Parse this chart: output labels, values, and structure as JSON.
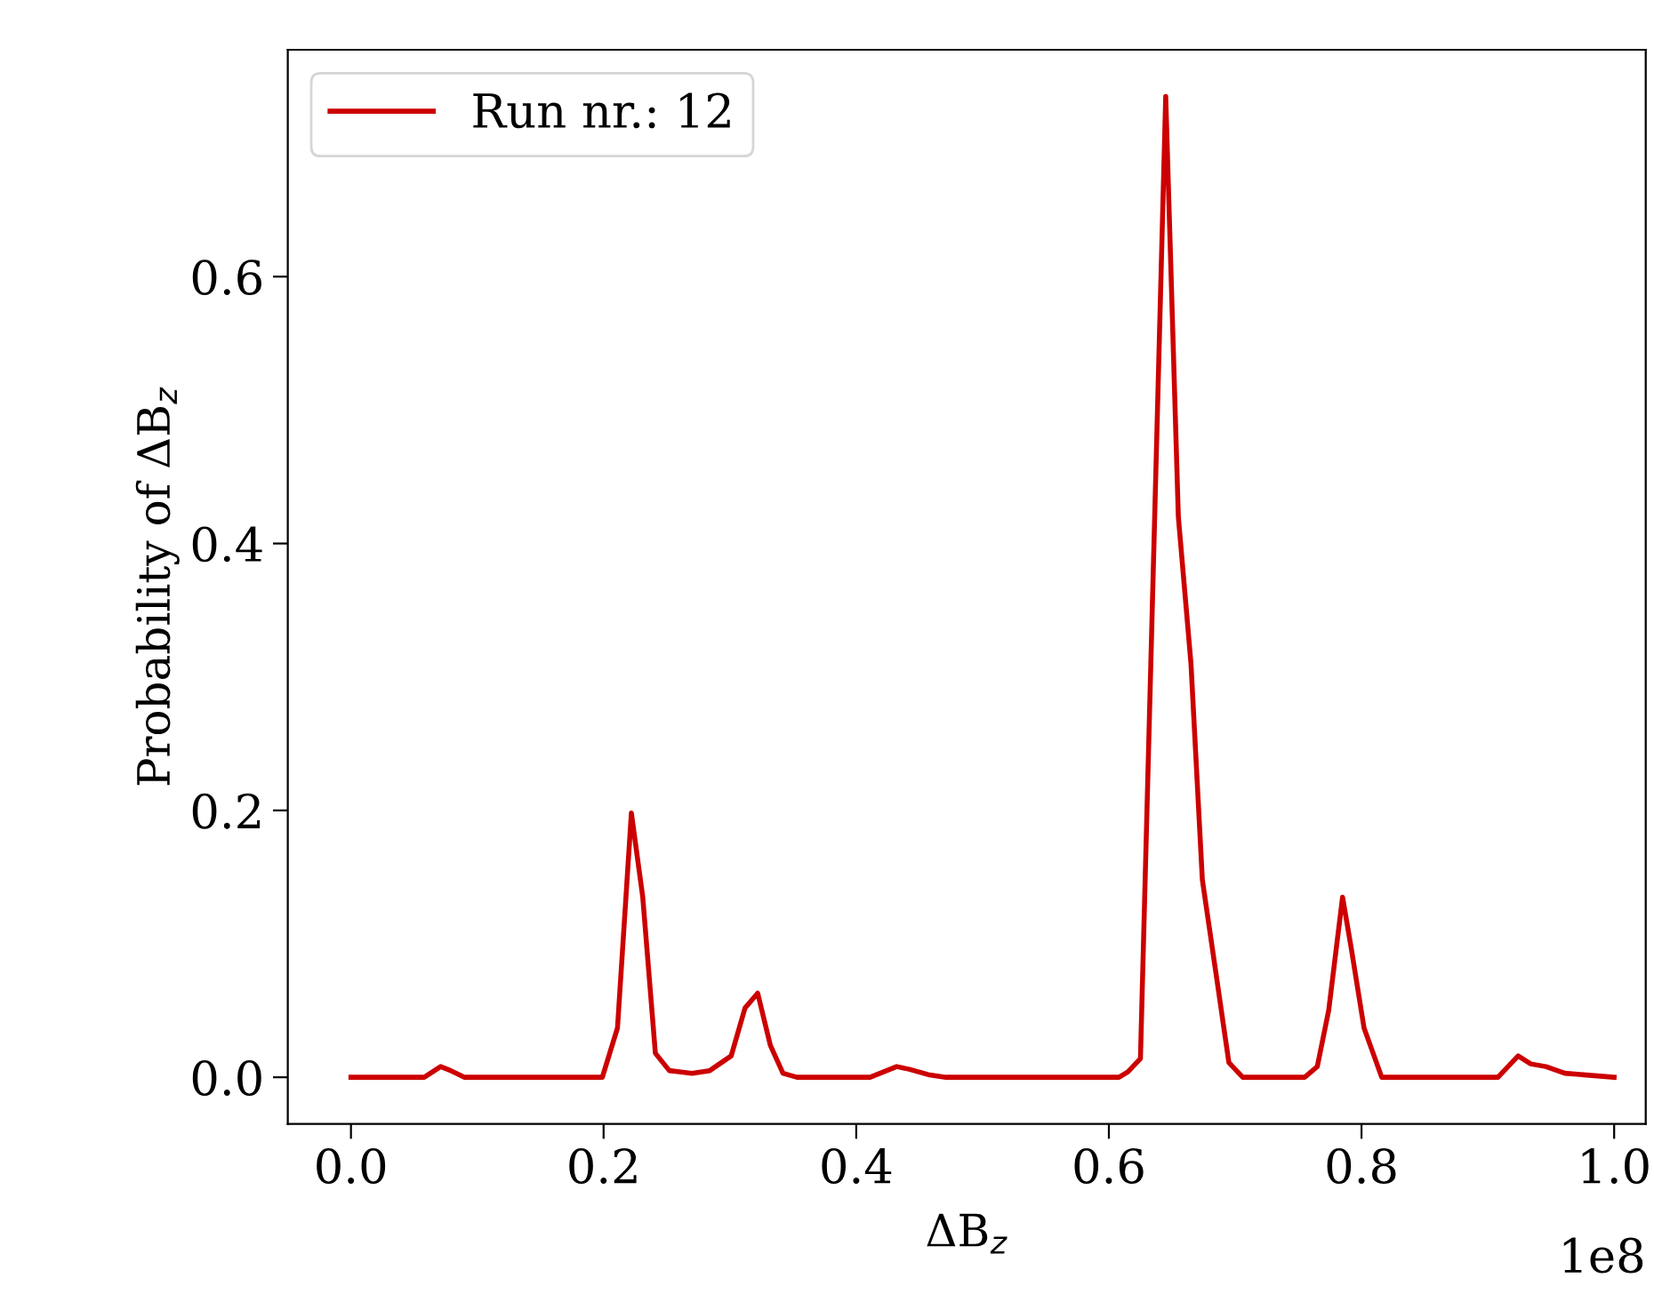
{
  "chart_data": {
    "type": "line",
    "xlabel": "ΔB$_{z}$",
    "ylabel": "Probability of ΔB$_{z}$",
    "annotations": [
      "1e8"
    ],
    "series": [
      {
        "name": "Run nr.: 12",
        "color": "#cc0000",
        "x": [
          0,
          0.058,
          0.071,
          0.079,
          0.09,
          0.199,
          0.211,
          0.222,
          0.231,
          0.241,
          0.252,
          0.27,
          0.284,
          0.301,
          0.312,
          0.322,
          0.332,
          0.342,
          0.353,
          0.411,
          0.432,
          0.442,
          0.457,
          0.471,
          0.608,
          0.615,
          0.625,
          0.645,
          0.655,
          0.665,
          0.674,
          0.686,
          0.695,
          0.706,
          0.755,
          0.765,
          0.774,
          0.785,
          0.792,
          0.802,
          0.816,
          0.908,
          0.924,
          0.934,
          0.946,
          0.961,
          1.0
        ],
        "values": [
          0,
          0,
          0.008,
          0.005,
          0,
          0,
          0.037,
          0.198,
          0.135,
          0.018,
          0.005,
          0.003,
          0.005,
          0.016,
          0.052,
          0.063,
          0.024,
          0.003,
          0,
          0,
          0.008,
          0.006,
          0.002,
          0,
          0,
          0.004,
          0.014,
          0.735,
          0.42,
          0.31,
          0.148,
          0.07,
          0.011,
          0,
          0,
          0.008,
          0.05,
          0.135,
          0.096,
          0.037,
          0,
          0,
          0.016,
          0.01,
          0.008,
          0.003,
          0
        ]
      }
    ],
    "xlim": [
      -0.05,
      1.025
    ],
    "ylim": [
      -0.035,
      0.77
    ],
    "xticks": [
      {
        "value": 0,
        "label": "0.0"
      },
      0.2,
      0.4,
      0.6,
      0.8,
      {
        "value": 1,
        "label": "1.0"
      }
    ],
    "yticks": [
      {
        "value": 0,
        "label": "0.0"
      },
      0.2,
      0.4,
      0.6
    ],
    "grid": false,
    "legend": "top left",
    "line_style": "solid",
    "marker": "none"
  }
}
